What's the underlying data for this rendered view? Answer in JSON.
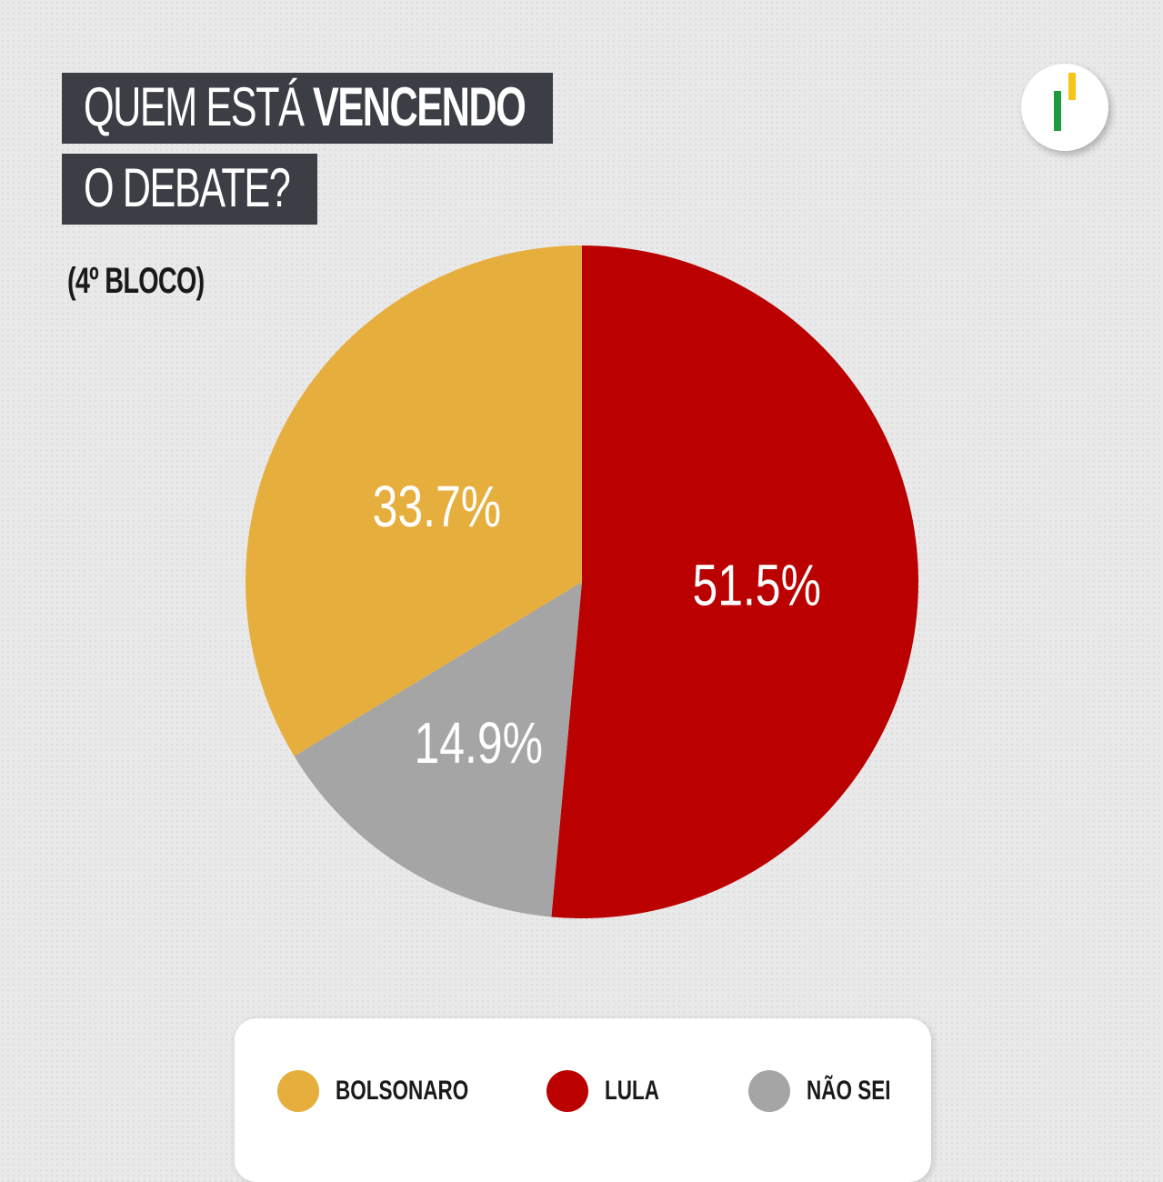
{
  "title": {
    "line1_thin": "QUEM ESTÁ",
    "line1_bold": "VENCENDO",
    "line2": "O DEBATE?"
  },
  "subtitle": "(4º BLOCO)",
  "logo_icon": "bar-logo-icon",
  "colors": {
    "bolsonaro": "#e6ae3d",
    "lula": "#bb0000",
    "nao_sei": "#a5a5a5"
  },
  "chart_data": {
    "type": "pie",
    "categories": [
      "LULA",
      "NÃO SEI",
      "BOLSONARO"
    ],
    "values": [
      51.5,
      14.9,
      33.7
    ],
    "labels": [
      "51.5%",
      "14.9%",
      "33.7%"
    ],
    "colors": [
      "#bb0000",
      "#a5a5a5",
      "#e6ae3d"
    ],
    "title": "",
    "legend_position": "bottom"
  },
  "legend": [
    {
      "label": "BOLSONARO",
      "color": "#e6ae3d"
    },
    {
      "label": "LULA",
      "color": "#bb0000"
    },
    {
      "label": "NÃO SEI",
      "color": "#a5a5a5"
    }
  ]
}
